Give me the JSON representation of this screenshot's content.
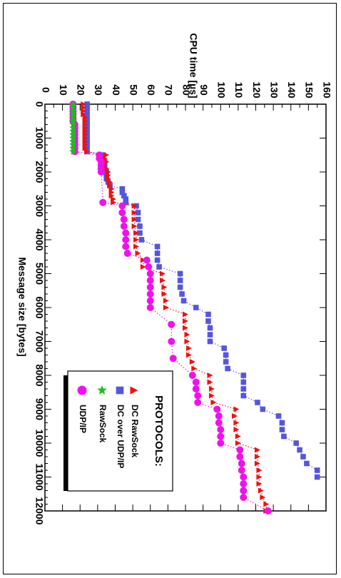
{
  "chart_data": {
    "type": "scatter",
    "orientation": "rotated-90-clockwise",
    "xlabel": "Message size [bytes]",
    "ylabel": "CPU time [µs]",
    "xlim": [
      0,
      12000
    ],
    "ylim": [
      0,
      160
    ],
    "x_ticks": [
      0,
      1000,
      2000,
      3000,
      4000,
      5000,
      6000,
      7000,
      8000,
      9000,
      10000,
      11000,
      12000
    ],
    "y_ticks": [
      0,
      10,
      20,
      30,
      40,
      50,
      60,
      70,
      80,
      90,
      100,
      110,
      120,
      130,
      140,
      150,
      160
    ],
    "legend": {
      "title": "PROTOCOLS:",
      "entries": [
        "DC RawSock",
        "DC over UDP/IP",
        "RawSock",
        "UDP/IP"
      ]
    },
    "series": [
      {
        "name": "DC RawSock",
        "color": "#ee1111",
        "marker": "triangle",
        "x": [
          0,
          100,
          200,
          300,
          400,
          500,
          600,
          700,
          800,
          900,
          1000,
          1100,
          1200,
          1300,
          1400,
          1500,
          1600,
          1700,
          1800,
          1900,
          2000,
          2100,
          2200,
          2300,
          2400,
          2500,
          2600,
          2700,
          2800,
          2900,
          3000,
          3200,
          3400,
          3600,
          3800,
          4000,
          4200,
          4400,
          4600,
          4800,
          5000,
          5200,
          5400,
          5600,
          5800,
          6000,
          6200,
          6400,
          6600,
          6800,
          7000,
          7200,
          7400,
          7600,
          7800,
          8000,
          8200,
          8400,
          8600,
          8800,
          9000,
          9200,
          9400,
          9600,
          9800,
          10000,
          10200,
          10400,
          10600,
          10800,
          11000,
          11200,
          11400,
          11600,
          11800,
          12000
        ],
        "y": [
          22,
          22,
          22,
          22,
          23,
          23,
          23,
          23,
          23,
          23,
          23,
          23,
          23,
          23,
          24,
          35,
          34,
          35,
          34,
          35,
          36,
          36,
          36,
          37,
          37,
          38,
          38,
          38,
          39,
          39,
          51,
          51,
          51,
          51,
          52,
          52,
          52,
          53,
          56,
          56,
          67,
          67,
          68,
          68,
          69,
          69,
          80,
          80,
          80,
          81,
          81,
          82,
          82,
          84,
          85,
          94,
          94,
          95,
          95,
          96,
          109,
          108,
          109,
          109,
          110,
          110,
          121,
          121,
          121,
          122,
          122,
          122,
          123,
          124,
          126,
          126
        ]
      },
      {
        "name": "DC over UDP/IP",
        "color": "#5555dd",
        "marker": "square",
        "x": [
          0,
          100,
          200,
          300,
          400,
          500,
          600,
          700,
          800,
          900,
          1000,
          1100,
          1200,
          1300,
          1400,
          1500,
          1600,
          1700,
          1800,
          1900,
          2000,
          2100,
          2200,
          2300,
          2400,
          2500,
          2600,
          2700,
          2800,
          2900,
          3000,
          3200,
          3400,
          3600,
          3800,
          4000,
          4200,
          4400,
          4600,
          4800,
          5000,
          5200,
          5400,
          5600,
          5800,
          6000,
          6200,
          6400,
          6600,
          6800,
          7000,
          7200,
          7400,
          7600,
          7800,
          8000,
          8200,
          8400,
          8600,
          8800,
          9000,
          9200,
          9400,
          9600,
          9800,
          10000,
          10200,
          10400,
          10600,
          10800,
          11000
        ],
        "y": [
          24,
          24,
          24,
          24,
          24,
          24,
          24,
          24,
          24,
          24,
          24,
          24,
          24,
          24,
          24,
          33,
          33,
          34,
          34,
          34,
          35,
          35,
          35,
          36,
          37,
          44,
          44,
          45,
          46,
          46,
          52,
          53,
          53,
          54,
          54,
          55,
          64,
          64,
          64,
          65,
          77,
          77,
          77,
          78,
          79,
          86,
          93,
          93,
          94,
          94,
          94,
          102,
          103,
          103,
          104,
          113,
          113,
          113,
          113,
          121,
          124,
          133,
          135,
          135,
          136,
          143,
          145,
          147,
          149,
          155,
          155
        ]
      },
      {
        "name": "RawSock",
        "color": "#22bb22",
        "marker": "star",
        "x": [
          0,
          100,
          200,
          300,
          400,
          500,
          600,
          700,
          800,
          900,
          1000,
          1100,
          1200,
          1300,
          1400
        ],
        "y": [
          16,
          16,
          16,
          16,
          16,
          16,
          16,
          16,
          16,
          16,
          16,
          16,
          16,
          16,
          16
        ]
      },
      {
        "name": "UDP/IP",
        "color": "#ee11ee",
        "marker": "circle",
        "x": [
          0,
          100,
          200,
          300,
          400,
          500,
          600,
          700,
          800,
          900,
          1000,
          1100,
          1200,
          1300,
          1400,
          1500,
          1600,
          1700,
          1800,
          1900,
          2000,
          2900,
          3000,
          3200,
          3400,
          3600,
          3800,
          4000,
          4200,
          4400,
          4600,
          4800,
          5000,
          5200,
          5400,
          5600,
          5800,
          6000,
          6500,
          7000,
          7500,
          8000,
          8200,
          8400,
          8600,
          8800,
          9000,
          9200,
          9400,
          9600,
          9800,
          10000,
          10200,
          10400,
          10600,
          10800,
          11000,
          11200,
          11400,
          11600,
          12000
        ],
        "y": [
          16,
          16,
          16,
          16,
          16,
          16,
          17,
          17,
          17,
          17,
          17,
          17,
          17,
          17,
          17,
          31,
          31,
          32,
          32,
          32,
          32,
          33,
          44,
          44,
          45,
          45,
          46,
          46,
          46,
          47,
          58,
          59,
          60,
          60,
          60,
          60,
          60,
          60,
          72,
          72,
          73,
          84,
          86,
          86,
          87,
          87,
          98,
          99,
          99,
          100,
          100,
          100,
          111,
          111,
          112,
          112,
          113,
          113,
          113,
          113,
          127
        ]
      }
    ]
  }
}
